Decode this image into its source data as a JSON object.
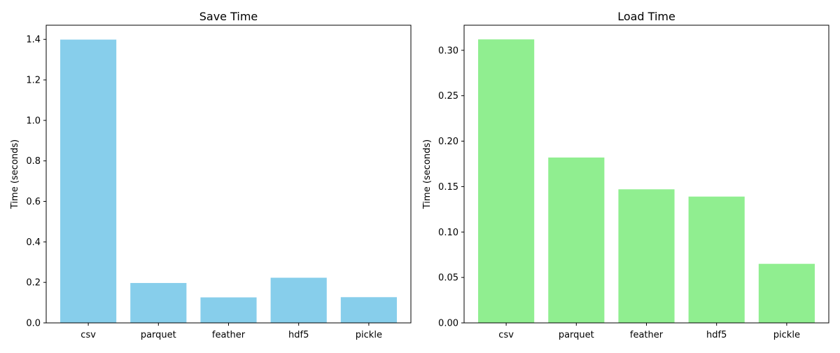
{
  "chart_data": [
    {
      "type": "bar",
      "title": "Save Time",
      "xlabel": "",
      "ylabel": "Time (seconds)",
      "categories": [
        "csv",
        "parquet",
        "feather",
        "hdf5",
        "pickle"
      ],
      "values": [
        1.399,
        0.197,
        0.126,
        0.223,
        0.127
      ],
      "ylim": [
        0,
        1.47
      ],
      "yticks": [
        0.0,
        0.2,
        0.4,
        0.6,
        0.8,
        1.0,
        1.2,
        1.4
      ],
      "ytick_labels": [
        "0.0",
        "0.2",
        "0.4",
        "0.6",
        "0.8",
        "1.0",
        "1.2",
        "1.4"
      ],
      "bar_color": "#87CEEB",
      "grid": false,
      "legend": "none"
    },
    {
      "type": "bar",
      "title": "Load Time",
      "xlabel": "",
      "ylabel": "Time (seconds)",
      "categories": [
        "csv",
        "parquet",
        "feather",
        "hdf5",
        "pickle"
      ],
      "values": [
        0.312,
        0.182,
        0.147,
        0.139,
        0.065
      ],
      "ylim": [
        0,
        0.3276
      ],
      "yticks": [
        0.0,
        0.05,
        0.1,
        0.15,
        0.2,
        0.25,
        0.3
      ],
      "ytick_labels": [
        "0.00",
        "0.05",
        "0.10",
        "0.15",
        "0.20",
        "0.25",
        "0.30"
      ],
      "bar_color": "#90EE90",
      "grid": false,
      "legend": "none"
    }
  ]
}
